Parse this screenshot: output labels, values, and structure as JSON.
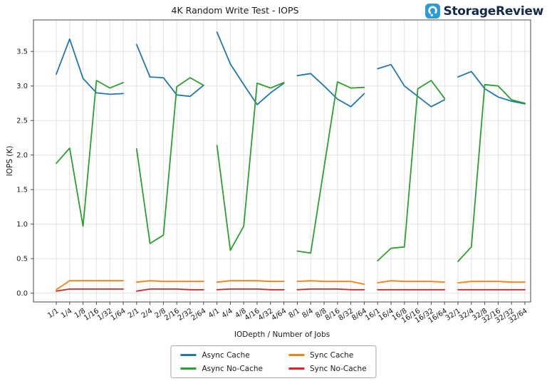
{
  "logo": {
    "text": "StorageReview",
    "icon_color": "#2d9bd6",
    "text_color": "#14294b"
  },
  "chart_data": {
    "type": "line",
    "title": "4K Random Write Test - IOPS",
    "xlabel": "IODepth / Number of Jobs",
    "ylabel": "IOPS (K)",
    "categories": [
      "1/1",
      "1/4",
      "1/8",
      "1/16",
      "1/32",
      "1/64",
      "2/1",
      "2/4",
      "2/8",
      "2/16",
      "2/32",
      "2/64",
      "4/1",
      "4/4",
      "4/8",
      "4/16",
      "4/32",
      "4/64",
      "8/1",
      "8/4",
      "8/8",
      "8/16",
      "8/32",
      "8/64",
      "16/1",
      "16/4",
      "16/8",
      "16/16",
      "16/32",
      "16/64",
      "32/1",
      "32/4",
      "32/8",
      "32/16",
      "32/32",
      "32/64"
    ],
    "group_size": 6,
    "series": [
      {
        "name": "Async Cache",
        "color": "#1f77b4",
        "values": [
          3.17,
          3.68,
          3.11,
          2.9,
          2.88,
          2.89,
          3.6,
          3.13,
          3.12,
          2.87,
          2.85,
          3.01,
          3.78,
          3.32,
          3.02,
          2.73,
          2.9,
          3.04,
          3.15,
          3.18,
          3.0,
          2.81,
          2.7,
          2.89,
          3.25,
          3.31,
          3.0,
          2.85,
          2.7,
          2.8,
          3.13,
          3.21,
          2.96,
          2.84,
          2.78,
          2.74
        ]
      },
      {
        "name": "Async No-Cache",
        "color": "#2ca02c",
        "values": [
          1.88,
          2.1,
          0.97,
          3.08,
          2.97,
          3.05,
          2.09,
          0.72,
          0.84,
          2.99,
          3.12,
          3.01,
          2.14,
          0.62,
          0.97,
          3.04,
          2.97,
          3.05,
          0.61,
          0.58,
          1.82,
          3.06,
          2.97,
          2.98,
          0.47,
          0.65,
          0.67,
          2.96,
          3.08,
          2.82,
          0.46,
          0.67,
          3.02,
          3.0,
          2.8,
          2.75
        ]
      },
      {
        "name": "Sync Cache",
        "color": "#ff7f0e",
        "values": [
          0.05,
          0.18,
          0.18,
          0.18,
          0.18,
          0.18,
          0.16,
          0.18,
          0.17,
          0.17,
          0.17,
          0.17,
          0.16,
          0.18,
          0.18,
          0.18,
          0.17,
          0.17,
          0.17,
          0.18,
          0.17,
          0.17,
          0.17,
          0.13,
          0.15,
          0.18,
          0.17,
          0.17,
          0.17,
          0.16,
          0.15,
          0.17,
          0.17,
          0.17,
          0.16,
          0.16
        ]
      },
      {
        "name": "Sync No-Cache",
        "color": "#d62728",
        "values": [
          0.03,
          0.06,
          0.06,
          0.06,
          0.06,
          0.06,
          0.03,
          0.06,
          0.06,
          0.06,
          0.05,
          0.05,
          0.05,
          0.06,
          0.06,
          0.06,
          0.05,
          0.05,
          0.05,
          0.06,
          0.06,
          0.06,
          0.05,
          0.05,
          0.05,
          0.05,
          0.05,
          0.05,
          0.05,
          0.05,
          0.05,
          0.05,
          0.05,
          0.05,
          0.05,
          0.05
        ]
      }
    ],
    "yticks": [
      0.0,
      0.5,
      1.0,
      1.5,
      2.0,
      2.5,
      3.0,
      3.5
    ],
    "ylim": [
      -0.127,
      3.956
    ],
    "grid": true,
    "legend_position": "bottom-center"
  }
}
